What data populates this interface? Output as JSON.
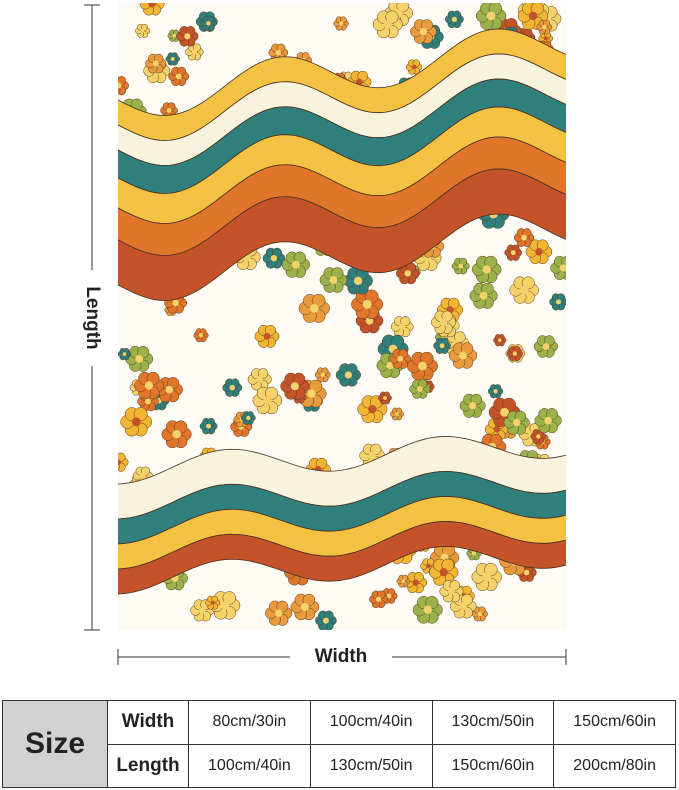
{
  "dimensions": {
    "length": "Length",
    "width": "Width"
  },
  "table": {
    "header": "Size",
    "rows": [
      [
        "Width",
        "80cm/30in",
        "100cm/40in",
        "130cm/50in",
        "150cm/60in"
      ],
      [
        "Length",
        "100cm/40in",
        "130cm/50in",
        "150cm/60in",
        "200cm/80in"
      ]
    ]
  }
}
